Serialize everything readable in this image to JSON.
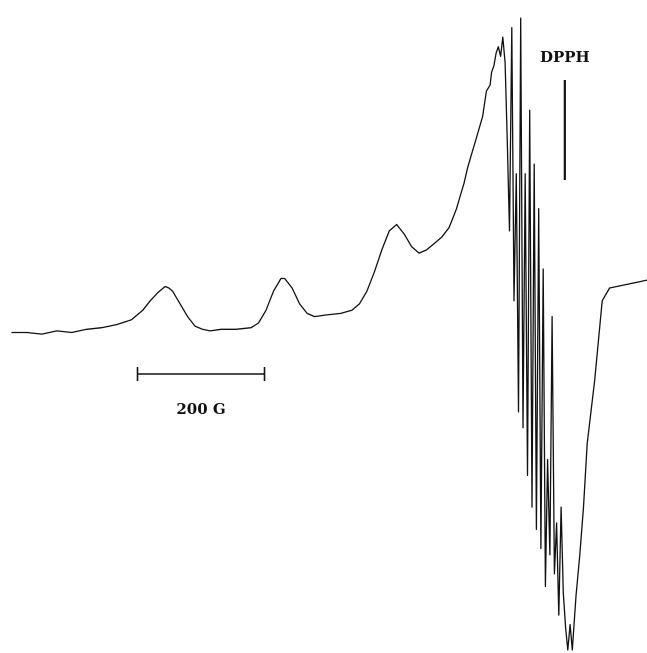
{
  "chart_data": {
    "type": "line",
    "title": "",
    "xlabel": "",
    "ylabel": "",
    "xlim": [
      0,
      850
    ],
    "ylim": [
      -10,
      10
    ],
    "grid": false,
    "legend": "none",
    "reference_marker": {
      "label": "DPPH",
      "x": 740
    },
    "scale_bar": {
      "label": "200 G",
      "x_start": 168,
      "x_end": 338
    },
    "series": [
      {
        "x": [
          0,
          20,
          40,
          60,
          80,
          100,
          120,
          140,
          160,
          175,
          185,
          195,
          205,
          210,
          215,
          225,
          235,
          245,
          255,
          265,
          280,
          300,
          320,
          330,
          340,
          345,
          350,
          355,
          360,
          365,
          375,
          385,
          395,
          405,
          420,
          440,
          455,
          465,
          475,
          485,
          495,
          505,
          515,
          525,
          535,
          545,
          555,
          565,
          575,
          585,
          590,
          595,
          600,
          605,
          610,
          615,
          620,
          625,
          630,
          635,
          640,
          642,
          645,
          648,
          651,
          654,
          657,
          660,
          663,
          666,
          669,
          672,
          675,
          678,
          681,
          684,
          687,
          690,
          693,
          696,
          699,
          702,
          705,
          708,
          711,
          714,
          717,
          720,
          723,
          726,
          729,
          732,
          735,
          738,
          741,
          744,
          747,
          750,
          755,
          760,
          765,
          770,
          780,
          790,
          800,
          820,
          840,
          850
        ],
        "y": [
          0.0,
          0.0,
          -0.05,
          0.05,
          0.0,
          0.1,
          0.15,
          0.25,
          0.4,
          0.7,
          1.0,
          1.25,
          1.45,
          1.4,
          1.3,
          0.9,
          0.5,
          0.2,
          0.1,
          0.05,
          0.1,
          0.1,
          0.15,
          0.3,
          0.7,
          1.0,
          1.3,
          1.5,
          1.7,
          1.7,
          1.4,
          0.9,
          0.6,
          0.5,
          0.55,
          0.6,
          0.7,
          0.9,
          1.3,
          1.9,
          2.6,
          3.2,
          3.4,
          3.1,
          2.7,
          2.5,
          2.6,
          2.8,
          3.0,
          3.3,
          3.6,
          3.9,
          4.3,
          4.7,
          5.2,
          5.6,
          6.0,
          6.4,
          6.8,
          7.6,
          7.8,
          8.2,
          8.4,
          8.8,
          9.0,
          8.7,
          9.3,
          8.5,
          6.0,
          3.2,
          9.6,
          1.0,
          5.0,
          -2.5,
          9.9,
          -3.0,
          5.0,
          -4.5,
          7.0,
          -5.5,
          5.3,
          -6.2,
          3.9,
          -6.8,
          2.0,
          -8.0,
          -4.0,
          -7.0,
          0.5,
          -7.6,
          -6.0,
          -8.9,
          -5.5,
          -8.2,
          -9.3,
          -10.0,
          -9.2,
          -10.0,
          -8.3,
          -7.0,
          -5.5,
          -3.5,
          -1.5,
          1.0,
          1.4,
          1.5,
          1.6,
          1.65
        ]
      }
    ]
  }
}
